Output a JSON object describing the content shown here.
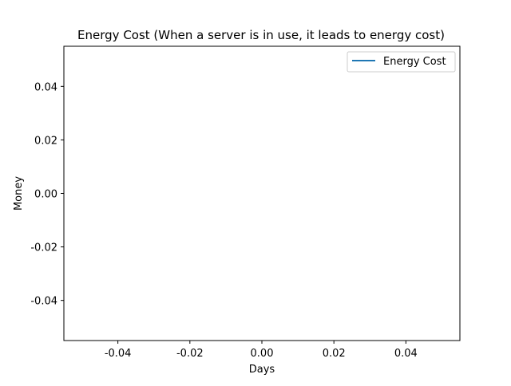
{
  "chart_data": {
    "type": "line",
    "title": "Energy Cost (When a server is in use, it leads to energy cost)",
    "xlabel": "Days",
    "ylabel": "Money",
    "xlim": [
      -0.055,
      0.055
    ],
    "ylim": [
      -0.055,
      0.055
    ],
    "x_ticks": [
      -0.04,
      -0.02,
      0.0,
      0.02,
      0.04
    ],
    "y_ticks": [
      -0.04,
      -0.02,
      0.0,
      0.02,
      0.04
    ],
    "x_tick_labels": [
      "-0.04",
      "-0.02",
      "0.00",
      "0.02",
      "0.04"
    ],
    "y_tick_labels": [
      "-0.04",
      "-0.02",
      "0.00",
      "0.02",
      "0.04"
    ],
    "grid": false,
    "legend_position": "top-right",
    "series": [
      {
        "name": "Energy Cost",
        "color": "#1f77b4",
        "x": [],
        "y": []
      }
    ]
  }
}
